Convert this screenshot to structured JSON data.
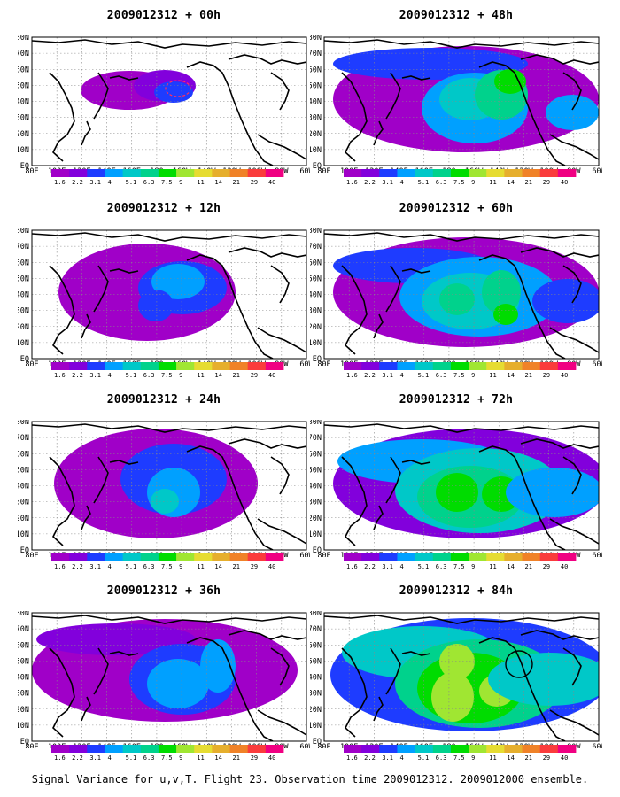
{
  "panels": [
    {
      "title": "2009012312 + 00h"
    },
    {
      "title": "2009012312 + 48h"
    },
    {
      "title": "2009012312 + 12h"
    },
    {
      "title": "2009012312 + 60h"
    },
    {
      "title": "2009012312 + 24h"
    },
    {
      "title": "2009012312 + 72h"
    },
    {
      "title": "2009012312 + 36h"
    },
    {
      "title": "2009012312 + 84h"
    }
  ],
  "axes": {
    "lat_labels": [
      "80N",
      "70N",
      "60N",
      "50N",
      "40N",
      "30N",
      "20N",
      "10N",
      "EQ"
    ],
    "lon_labels": [
      "80E",
      "100E",
      "120E",
      "140E",
      "160E",
      "180",
      "160W",
      "140W",
      "120W",
      "100W",
      "80W",
      "60W"
    ]
  },
  "colorbar": {
    "labels": [
      "1.6",
      "2.2",
      "3.1",
      "4",
      "5.1",
      "6.3",
      "7.5",
      "9",
      "11",
      "14",
      "21",
      "29",
      "40"
    ],
    "colors": [
      "#a000c8",
      "#8200dc",
      "#1e3cff",
      "#00a0ff",
      "#00c8c8",
      "#00d28c",
      "#00dc00",
      "#a0e632",
      "#e6dc32",
      "#e6af2d",
      "#f08228",
      "#fa3c3c",
      "#f00082"
    ]
  },
  "footer": "Signal Variance for u,v,T. Flight 23. Observation time 2009012312. 2009012000 ensemble."
}
